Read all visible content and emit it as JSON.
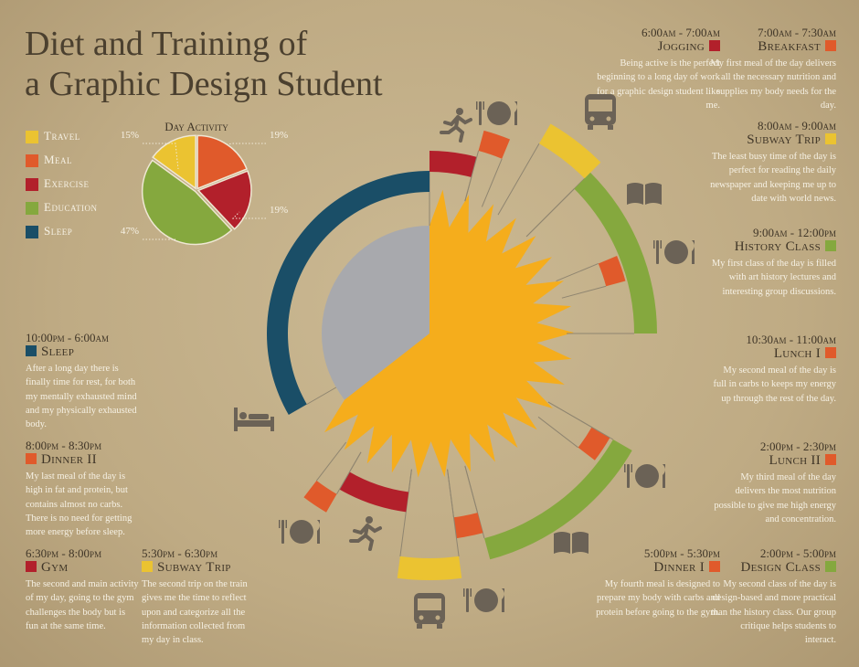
{
  "title": [
    "Diet and Training of",
    "a Graphic Design Student"
  ],
  "legend": [
    {
      "name": "Travel",
      "color": "#ebc331"
    },
    {
      "name": "Meal",
      "color": "#e05a2b"
    },
    {
      "name": "Exercise",
      "color": "#b2202b"
    },
    {
      "name": "Education",
      "color": "#85a83e"
    },
    {
      "name": "Sleep",
      "color": "#1a4e67"
    }
  ],
  "chart_data": {
    "type": "pie",
    "title": "Day Activity",
    "categories": [
      "Meal",
      "Exercise",
      "Education",
      "Travel"
    ],
    "values": [
      19,
      19,
      47,
      15
    ],
    "value_labels": [
      "19%",
      "19%",
      "47%",
      "15%"
    ],
    "colors": [
      "#e05a2b",
      "#b2202b",
      "#85a83e",
      "#ebc331"
    ]
  },
  "entries": [
    {
      "time": "6:00am - 7:00am",
      "name": "Jogging",
      "color": "#b2202b",
      "text": "Being active is the perfect beginning to a long day of work for a graphic design student like me."
    },
    {
      "time": "7:00am - 7:30am",
      "name": "Breakfast",
      "color": "#e05a2b",
      "text": "My first meal of the day delivers all the necessary nutrition and supplies my body needs for the day."
    },
    {
      "time": "8:00am - 9:00am",
      "name": "Subway Trip",
      "color": "#ebc331",
      "text": "The least busy time of the day is perfect for reading the daily newspaper and keeping me up to date with world news."
    },
    {
      "time": "9:00am - 12:00pm",
      "name": "History Class",
      "color": "#85a83e",
      "text": "My first class of the day is filled with art history lectures and interesting group discussions."
    },
    {
      "time": "10:30am - 11:00am",
      "name": "Lunch I",
      "color": "#e05a2b",
      "text": "My second meal of the day is full in carbs to keeps my energy up through the rest of the day."
    },
    {
      "time": "2:00pm - 2:30pm",
      "name": "Lunch II",
      "color": "#e05a2b",
      "text": "My third meal of the day delivers the most nutrition possible to give me high energy and concentration."
    },
    {
      "time": "2:00pm - 5:00pm",
      "name": "Design Class",
      "color": "#85a83e",
      "text": "My second class of the day is design-based and more practical than the history class. Our group critique helps students to interact."
    },
    {
      "time": "5:00pm - 5:30pm",
      "name": "Dinner I",
      "color": "#e05a2b",
      "text": "My fourth meal is designed to prepare my body with carbs and protein before going to the gym."
    },
    {
      "time": "5:30pm - 6:30pm",
      "name": "Subway Trip",
      "color": "#ebc331",
      "text": "The second trip on the train gives me the time to reflect upon and categorize all the information collected from my day in class."
    },
    {
      "time": "6:30pm - 8:00pm",
      "name": "Gym",
      "color": "#b2202b",
      "text": "The second and main activity of my day, going to the gym challenges the body but is fun at the same time."
    },
    {
      "time": "8:00pm - 8:30pm",
      "name": "Dinner II",
      "color": "#e05a2b",
      "text": "My last meal of the day is high in fat and protein, but contains almost no carbs. There is no need for getting more energy before sleep."
    },
    {
      "time": "10:00pm - 6:00am",
      "name": "Sleep",
      "color": "#1a4e67",
      "text": "After a long day there is finally time for rest, for both my mentally exhausted mind and my physically exhausted body."
    }
  ]
}
